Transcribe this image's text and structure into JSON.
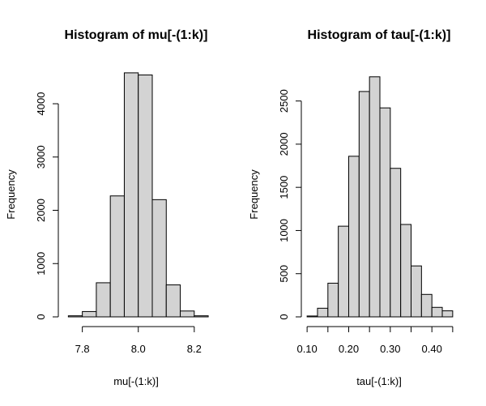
{
  "chart_data": [
    {
      "type": "bar",
      "title": "Histogram of mu[-(1:k)]",
      "xlabel": "mu[-(1:k)]",
      "ylabel": "Frequency",
      "bin_edges": [
        7.75,
        7.8,
        7.85,
        7.9,
        7.95,
        8.0,
        8.05,
        8.1,
        8.15,
        8.2,
        8.25
      ],
      "values": [
        20,
        100,
        640,
        2270,
        4580,
        4540,
        2200,
        600,
        110,
        20
      ],
      "xlim": [
        7.72,
        8.27
      ],
      "ylim": [
        0,
        4700
      ],
      "xticks": [
        7.8,
        8.0,
        8.2
      ],
      "xtick_labels": [
        "7.8",
        "8.0",
        "8.2"
      ],
      "yticks": [
        0,
        1000,
        2000,
        3000,
        4000
      ],
      "ytick_labels": [
        "0",
        "1000",
        "2000",
        "3000",
        "4000"
      ],
      "grid": false
    },
    {
      "type": "bar",
      "title": "Histogram of tau[-(1:k)]",
      "xlabel": "tau[-(1:k)]",
      "ylabel": "Frequency",
      "bin_edges": [
        0.1,
        0.125,
        0.15,
        0.175,
        0.2,
        0.225,
        0.25,
        0.275,
        0.3,
        0.325,
        0.35,
        0.375,
        0.4,
        0.425,
        0.45
      ],
      "values": [
        10,
        100,
        390,
        1050,
        1860,
        2610,
        2780,
        2420,
        1720,
        1070,
        590,
        260,
        110,
        70
      ],
      "xlim": [
        0.09,
        0.46
      ],
      "ylim": [
        0,
        2900
      ],
      "xticks": [
        0.1,
        0.15,
        0.2,
        0.25,
        0.3,
        0.35,
        0.4,
        0.45
      ],
      "xtick_labels": [
        "0.10",
        "",
        "0.20",
        "",
        "0.30",
        "",
        "0.40",
        ""
      ],
      "yticks": [
        0,
        500,
        1000,
        1500,
        2000,
        2500
      ],
      "ytick_labels": [
        "0",
        "500",
        "1000",
        "1500",
        "2000",
        "2500"
      ],
      "grid": false
    }
  ]
}
